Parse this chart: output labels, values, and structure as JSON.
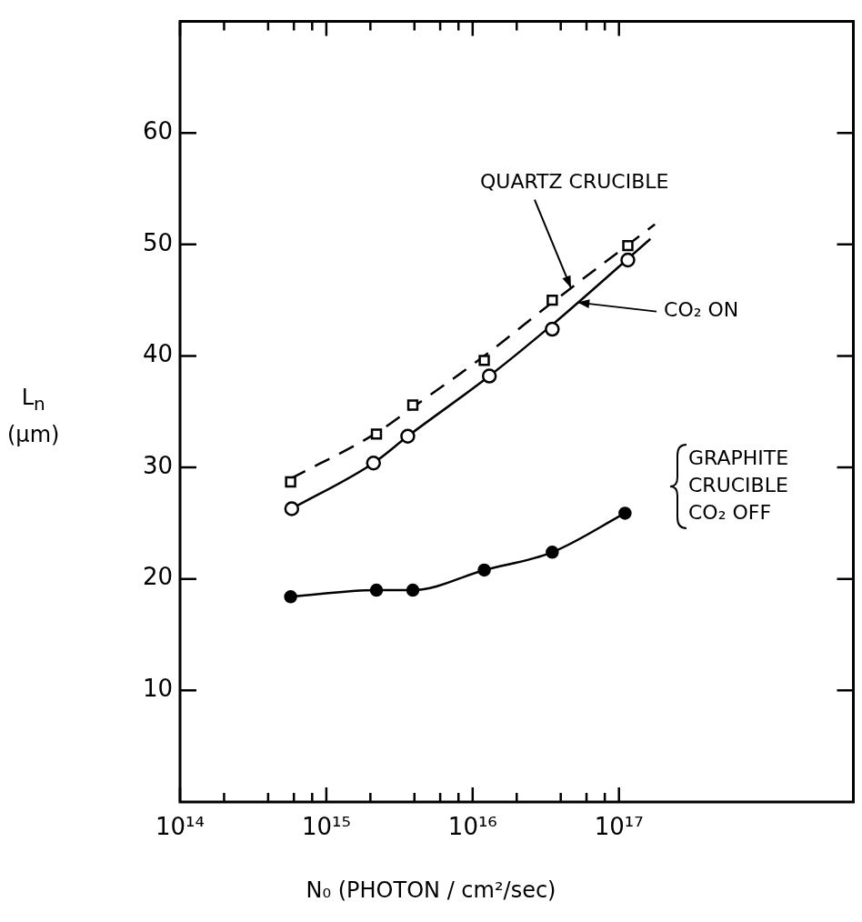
{
  "chart_data": {
    "type": "scatter",
    "xlabel": "N₀ (PHOTON / cm²/sec)",
    "ylabel": "L$_{n}$ (μm)",
    "log": "x",
    "xlim": [
      100000000000000.0,
      4e+18
    ],
    "xticks": [
      {
        "value": 100000000000000.0,
        "label": "10¹⁴"
      },
      {
        "value": 200000000000000.0,
        "label": null
      },
      {
        "value": 400000000000000.0,
        "label": null
      },
      {
        "value": 600000000000000.0,
        "label": null
      },
      {
        "value": 800000000000000.0,
        "label": null
      },
      {
        "value": 1000000000000000.0,
        "label": "10¹⁵"
      },
      {
        "value": 2000000000000000.0,
        "label": null
      },
      {
        "value": 4000000000000000.0,
        "label": null
      },
      {
        "value": 6000000000000000.0,
        "label": null
      },
      {
        "value": 8000000000000000.0,
        "label": null
      },
      {
        "value": 1e+16,
        "label": "10¹⁶"
      },
      {
        "value": 2e+16,
        "label": null
      },
      {
        "value": 4e+16,
        "label": null
      },
      {
        "value": 6e+16,
        "label": null
      },
      {
        "value": 8e+16,
        "label": null
      },
      {
        "value": 1e+17,
        "label": "10¹⁷"
      }
    ],
    "ylim": [
      0,
      70
    ],
    "yticks": [
      10,
      20,
      30,
      40,
      50,
      60
    ],
    "grid": false,
    "legend": false,
    "series": [
      {
        "marker": "square",
        "color": "#000000",
        "x": [
          570000000000000.0,
          2200000000000000.0,
          3900000000000000.0,
          1.2e+16,
          3.5e+16,
          1.15e+17
        ],
        "values": [
          28.7,
          33.0,
          35.6,
          39.6,
          45.0,
          49.9
        ]
      },
      {
        "marker": "circle",
        "color": "#000000",
        "x": [
          580000000000000.0,
          2100000000000000.0,
          3600000000000000.0,
          1.3e+16,
          3.5e+16,
          1.15e+17
        ],
        "values": [
          26.3,
          30.4,
          32.8,
          38.2,
          42.4,
          48.6
        ]
      },
      {
        "type": "line",
        "marker": "circle",
        "line_style": "solid",
        "color": "#000000",
        "x": [
          570000000000000.0,
          2200000000000000.0,
          3900000000000000.0,
          1.2e+16,
          3.5e+16,
          1.1e+17
        ],
        "values": [
          18.4,
          19.0,
          19.0,
          20.8,
          22.4,
          25.9
        ]
      },
      {
        "type": "line",
        "marker": "none",
        "line_style": "dashed",
        "color": "#000000",
        "x": [
          570000000000000.0,
          2200000000000000.0,
          3900000000000000.0,
          1.2e+16,
          3.5e+16,
          1.76e+17
        ],
        "values": [
          29.0,
          33.1,
          35.4,
          40.0,
          44.8,
          51.8
        ]
      },
      {
        "type": "line",
        "marker": "none",
        "line_style": "solid",
        "color": "#000000",
        "x": [
          580000000000000.0,
          2100000000000000.0,
          3600000000000000.0,
          1.3e+16,
          3.5e+16,
          1.64e+17
        ],
        "values": [
          26.3,
          30.4,
          32.8,
          38.2,
          42.8,
          50.5
        ]
      }
    ],
    "annotations": [
      {
        "text": "QUARTZ CRUCIBLE",
        "x": 4.7e+16,
        "y": 46.1
      },
      {
        "text": "CO₂ ON",
        "x": 5.2e+16,
        "y": 44.8
      },
      "GRAPHITE\nCRUCIBLE\nCO₂ OFF"
    ]
  }
}
